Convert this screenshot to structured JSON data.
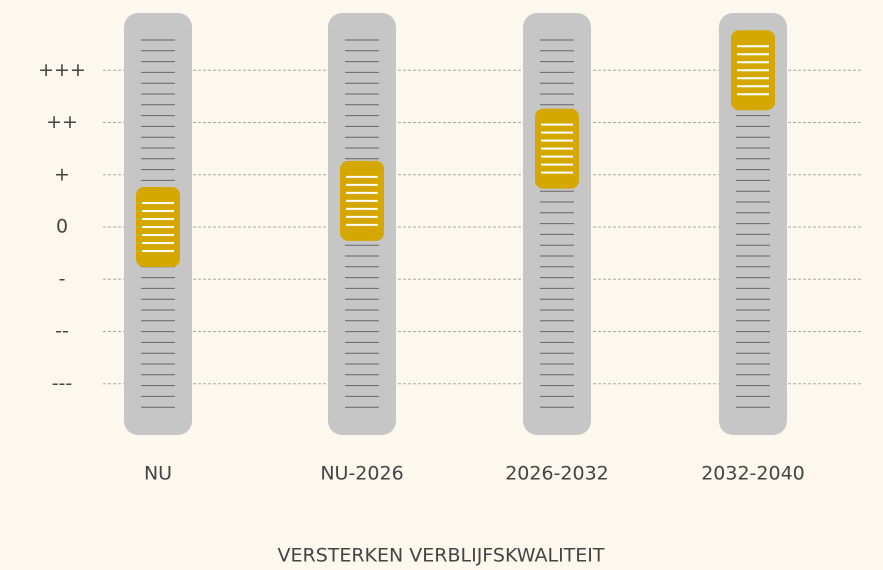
{
  "chart_data": {
    "type": "slider",
    "title": "VERSTERKEN VERBLIJFSKWALITEIT",
    "categories": [
      "NU",
      "NU-2026",
      "2026-2032",
      "2032-2040"
    ],
    "values": [
      0,
      0.5,
      1.5,
      3
    ],
    "color": "#d4a800",
    "ylim": [
      -4,
      4
    ],
    "yticks": [
      {
        "value": 3,
        "label": "+++"
      },
      {
        "value": 2,
        "label": "++"
      },
      {
        "value": 1,
        "label": "+"
      },
      0,
      {
        "value": -1,
        "label": "-"
      },
      {
        "value": -2,
        "label": "--"
      },
      {
        "value": -3,
        "label": "---"
      }
    ],
    "grid": true
  }
}
